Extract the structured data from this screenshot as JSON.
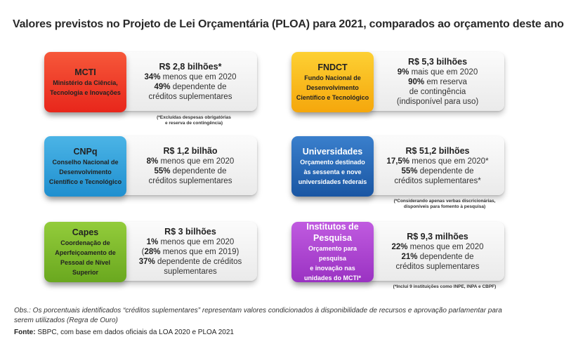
{
  "title": "Valores previstos no Projeto de Lei Orçamentária (PLOA) para 2021, comparados ao orçamento deste ano",
  "colors": {
    "mcti": "#ee3124",
    "fndct": "#f9b514",
    "cnpq": "#2f9fd8",
    "universidades": "#2264b2",
    "capes": "#79b829",
    "institutos": "#a33fc7"
  },
  "cards": {
    "mcti": {
      "acronym": "MCTI",
      "full_line1": "Ministério da Ciência,",
      "full_line2": "Tecnologia e Inovações",
      "amount": "R$ 2,8 bilhões*",
      "l1_pct": "34%",
      "l1_rest": " menos que em 2020",
      "l2_pct": "49%",
      "l2_rest": " dependente de",
      "l3": "créditos suplementares",
      "footnote1": "(*Excluídas despesas obrigatórias",
      "footnote2": "e reserva de contingência)"
    },
    "fndct": {
      "acronym": "FNDCT",
      "full_line1": "Fundo Nacional de",
      "full_line2": "Desenvolvimento",
      "full_line3": "Científico e Tecnológico",
      "amount": "R$ 5,3 bilhões",
      "l1_pct": "9%",
      "l1_rest": " mais que em 2020",
      "l2_pct": "90%",
      "l2_rest": " em reserva",
      "l3": "de contingência",
      "l4": "(indisponível para uso)"
    },
    "cnpq": {
      "acronym": "CNPq",
      "full_line1": "Conselho Nacional de",
      "full_line2": "Desenvolvimento",
      "full_line3": "Científico e Tecnológico",
      "amount": "R$ 1,2 bilhão",
      "l1_pct": "8%",
      "l1_rest": " menos que em 2020",
      "l2_pct": "55%",
      "l2_rest": " dependente de",
      "l3": "créditos suplementares"
    },
    "universidades": {
      "acronym": "Universidades",
      "full_line1": "Orçamento destinado",
      "full_line2": "às sessenta e nove",
      "full_line3": "universidades federais",
      "amount": "R$ 51,2 bilhões",
      "l1_pct": "17,5%",
      "l1_rest": " menos que em 2020*",
      "l2_pct": "55%",
      "l2_rest": " dependente de",
      "l3": "créditos suplementares*",
      "footnote1": "(*Considerando apenas verbas discricionárias,",
      "footnote2": "disponíveis para fomento à pesquisa)"
    },
    "capes": {
      "acronym": "Capes",
      "full_line1": "Coordenação de",
      "full_line2": "Aperfeiçoamento de",
      "full_line3": "Pessoal de Nível Superior",
      "amount": "R$ 3 bilhões",
      "l1_pct": "1%",
      "l1_rest": " menos que em 2020",
      "l2_open": "(",
      "l2_pct": "28%",
      "l2_rest": " menos que em 2019)",
      "l3_pct": "37%",
      "l3_rest": " dependente de créditos",
      "l4": "suplementares"
    },
    "institutos": {
      "acronym": "Institutos de Pesquisa",
      "full_line1": "Orçamento para pesquisa",
      "full_line2": "e inovação nas",
      "full_line3": "unidades do MCTI*",
      "amount": "R$ 9,3 milhões",
      "l1_pct": "22%",
      "l1_rest": " menos que em 2020",
      "l2_pct": "21%",
      "l2_rest": " dependente de",
      "l3": "créditos suplementares",
      "footnote1": "(*Inclui 9 instituições como INPE, INPA e CBPF)"
    }
  },
  "obs": "Obs.: Os porcentuais identificados “créditos suplementares” representam valores condicionados à disponibilidade de recursos e aprovação parlamentar para serem utilizados (Regra de Ouro)",
  "source_label": "Fonte:",
  "source_text": " SBPC, com base em dados oficiais da LOA 2020 e PLOA 2021"
}
